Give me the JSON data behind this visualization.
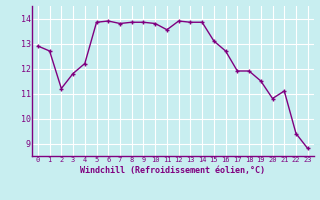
{
  "x": [
    0,
    1,
    2,
    3,
    4,
    5,
    6,
    7,
    8,
    9,
    10,
    11,
    12,
    13,
    14,
    15,
    16,
    17,
    18,
    19,
    20,
    21,
    22,
    23
  ],
  "y": [
    12.9,
    12.7,
    11.2,
    11.8,
    12.2,
    13.85,
    13.9,
    13.8,
    13.85,
    13.85,
    13.8,
    13.55,
    13.9,
    13.85,
    13.85,
    13.1,
    12.7,
    11.9,
    11.9,
    11.5,
    10.8,
    11.1,
    9.4,
    8.8
  ],
  "line_color": "#800080",
  "marker": "+",
  "bg_color": "#c8eef0",
  "grid_color": "#ffffff",
  "xlabel": "Windchill (Refroidissement éolien,°C)",
  "xlabel_color": "#800080",
  "tick_color": "#800080",
  "spine_color": "#800080",
  "ylim": [
    8.5,
    14.5
  ],
  "xlim": [
    -0.5,
    23.5
  ],
  "yticks": [
    9,
    10,
    11,
    12,
    13,
    14
  ],
  "xticks": [
    0,
    1,
    2,
    3,
    4,
    5,
    6,
    7,
    8,
    9,
    10,
    11,
    12,
    13,
    14,
    15,
    16,
    17,
    18,
    19,
    20,
    21,
    22,
    23
  ],
  "xtick_fontsize": 5.0,
  "ytick_fontsize": 6.0,
  "xlabel_fontsize": 6.0,
  "linewidth": 1.0,
  "markersize": 3.5
}
